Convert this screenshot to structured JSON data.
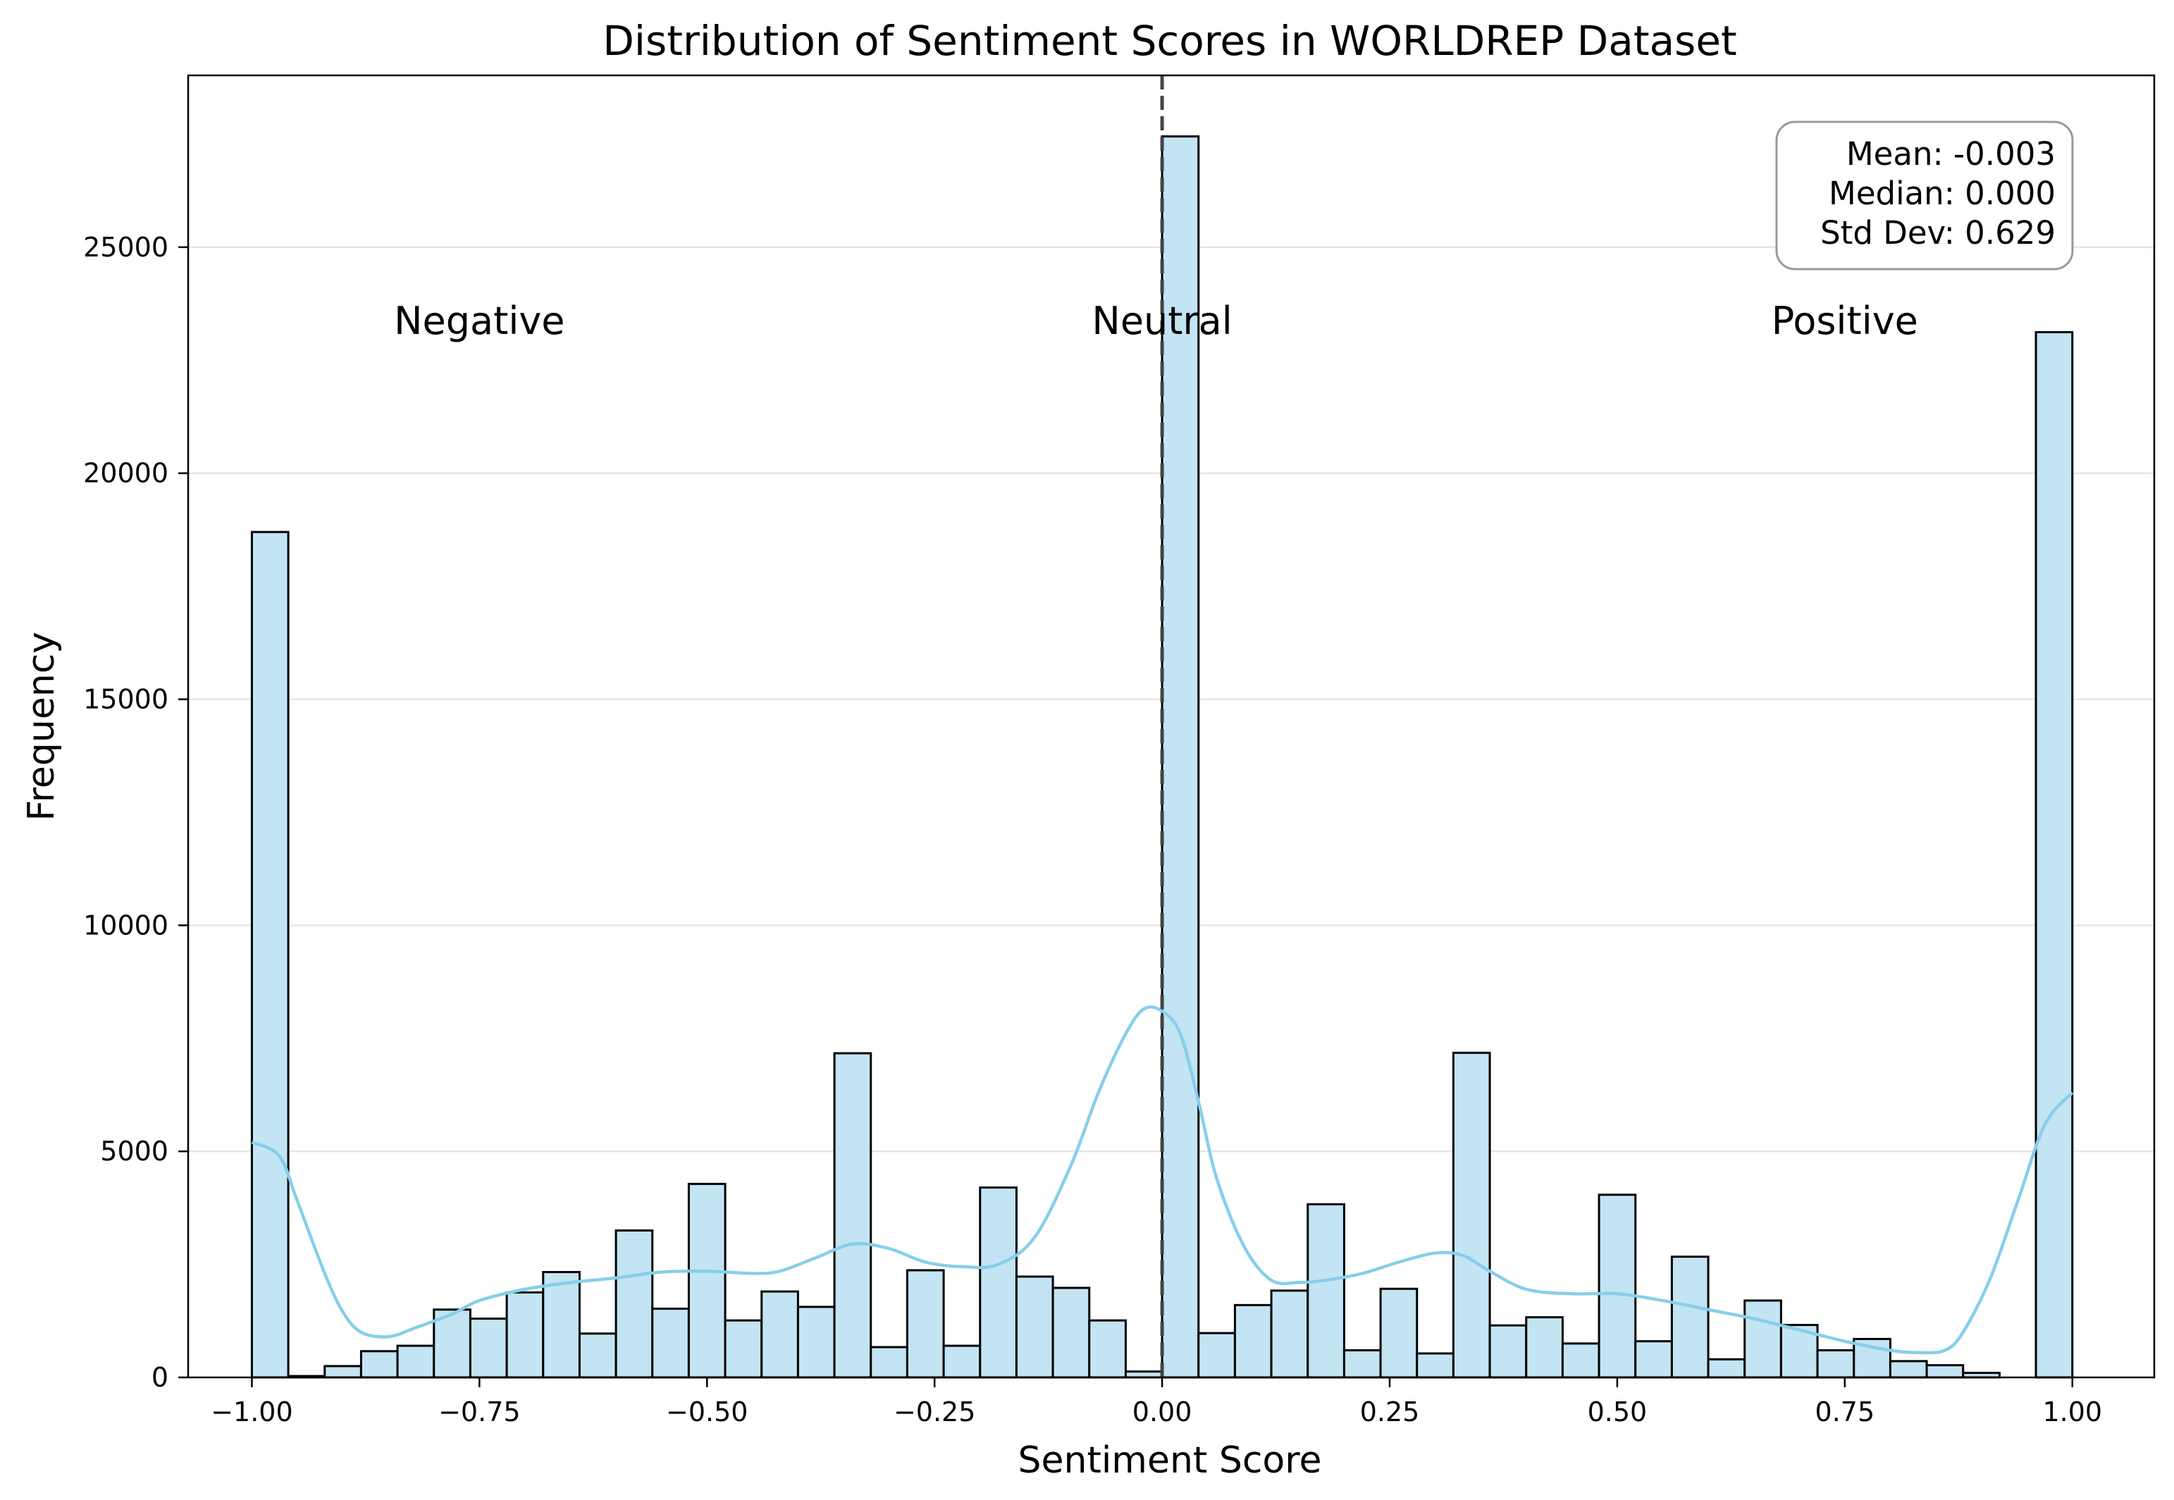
{
  "chart_data": {
    "type": "bar",
    "title": "Distribution of Sentiment Scores in WORLDREP Dataset",
    "xlabel": "Sentiment Score",
    "ylabel": "Frequency",
    "xlim": [
      -1.07,
      1.09
    ],
    "ylim": [
      0,
      28800
    ],
    "x_ticks": [
      -1.0,
      -0.75,
      -0.5,
      -0.25,
      0.0,
      0.25,
      0.5,
      0.75,
      1.0
    ],
    "x_tick_labels": [
      "−1.00",
      "−0.75",
      "−0.50",
      "−0.25",
      "0.00",
      "0.25",
      "0.50",
      "0.75",
      "1.00"
    ],
    "y_ticks": [
      0,
      5000,
      10000,
      15000,
      20000,
      25000
    ],
    "y_tick_labels": [
      "0",
      "5000",
      "10000",
      "15000",
      "20000",
      "25000"
    ],
    "grid": "horizontal",
    "bin_edges": [
      -1.0,
      -0.96,
      -0.92,
      -0.88,
      -0.84,
      -0.8,
      -0.76,
      -0.72,
      -0.68,
      -0.64,
      -0.6,
      -0.56,
      -0.52,
      -0.48,
      -0.44,
      -0.4,
      -0.36,
      -0.32,
      -0.28,
      -0.24,
      -0.2,
      -0.16,
      -0.12,
      -0.08,
      -0.04,
      0.0,
      0.04,
      0.08,
      0.12,
      0.16,
      0.2,
      0.24,
      0.28,
      0.32,
      0.36,
      0.4,
      0.44,
      0.48,
      0.52,
      0.56,
      0.6,
      0.64,
      0.68,
      0.72,
      0.76,
      0.8,
      0.84,
      0.88,
      0.92,
      0.96,
      1.0
    ],
    "values": [
      18700,
      30,
      250,
      580,
      700,
      1500,
      1300,
      1880,
      2330,
      970,
      3250,
      1520,
      4280,
      1260,
      1900,
      1560,
      7170,
      670,
      2370,
      700,
      4200,
      2230,
      1980,
      1260,
      130,
      27450,
      980,
      1600,
      1920,
      3830,
      600,
      1960,
      530,
      7180,
      1150,
      1330,
      750,
      4040,
      800,
      2670,
      400,
      1700,
      1160,
      600,
      850,
      360,
      270,
      100,
      0,
      23120
    ],
    "kde": {
      "color": "#87CEEB",
      "x": [
        -1.0,
        -0.97,
        -0.95,
        -0.92,
        -0.9,
        -0.88,
        -0.85,
        -0.82,
        -0.78,
        -0.75,
        -0.7,
        -0.65,
        -0.6,
        -0.55,
        -0.5,
        -0.45,
        -0.42,
        -0.38,
        -0.34,
        -0.3,
        -0.26,
        -0.22,
        -0.18,
        -0.14,
        -0.1,
        -0.07,
        -0.04,
        -0.02,
        0.0,
        0.02,
        0.04,
        0.06,
        0.09,
        0.12,
        0.15,
        0.18,
        0.22,
        0.26,
        0.3,
        0.33,
        0.36,
        0.4,
        0.45,
        0.5,
        0.55,
        0.6,
        0.65,
        0.7,
        0.75,
        0.8,
        0.83,
        0.86,
        0.88,
        0.91,
        0.94,
        0.97,
        1.0
      ],
      "y": [
        5200,
        4900,
        3900,
        2300,
        1450,
        1000,
        900,
        1100,
        1400,
        1700,
        1950,
        2100,
        2200,
        2330,
        2350,
        2300,
        2350,
        2650,
        2950,
        2850,
        2550,
        2450,
        2500,
        3100,
        4700,
        6300,
        7600,
        8150,
        8100,
        7600,
        6100,
        4400,
        2900,
        2150,
        2100,
        2150,
        2300,
        2550,
        2750,
        2700,
        2350,
        1950,
        1850,
        1850,
        1700,
        1500,
        1300,
        1050,
        800,
        600,
        550,
        600,
        1000,
        2200,
        3900,
        5600,
        6300
      ]
    },
    "neutral_line_x": 0.0,
    "region_labels": [
      {
        "text": "Negative",
        "x": -0.75
      },
      {
        "text": "Neutral",
        "x": 0.0
      },
      {
        "text": "Positive",
        "x": 0.75
      }
    ],
    "stats": {
      "mean": "Mean: -0.003",
      "median": "Median: 0.000",
      "std": "Std Dev: 0.629"
    },
    "colors": {
      "bar_fill": "#C3E4F2",
      "bar_edge": "#000000",
      "kde": "#87CEEB",
      "neutral_line": "#444444",
      "grid": "#E6E6E6"
    }
  }
}
